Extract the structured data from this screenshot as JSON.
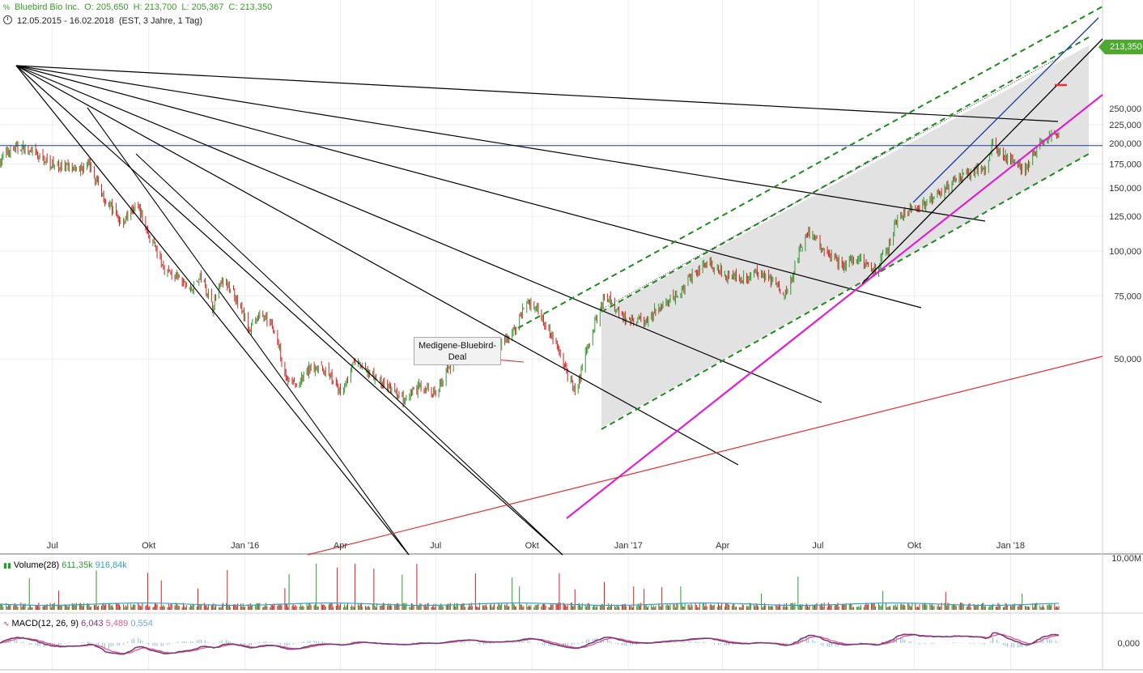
{
  "header": {
    "instrument": "Bluebird Bio Inc.",
    "open": "O: 205,650",
    "high": "H: 213,700",
    "low": "L: 205,367",
    "close": "C: 213,350",
    "range": "12.05.2015 - 16.02.2018",
    "info": "(EST, 3 Jahre, 1 Tag)"
  },
  "price_tag": "213,350",
  "annotation": {
    "line1": "Medigene-Bluebird-",
    "line2": "Deal"
  },
  "volume_header": {
    "label": "Volume(28)",
    "v1": "611,35k",
    "v2": "916,84k"
  },
  "macd_header": {
    "label": "MACD(12, 26, 9)",
    "v1": "6,043",
    "v2": "5,489",
    "v3": "0,554"
  },
  "volume_axis": [
    "10,00M"
  ],
  "macd_axis": [
    "0,000"
  ],
  "colors": {
    "up": "#2e9a2e",
    "down": "#d32020",
    "trendline": "#000000",
    "channel": "#1e8a1e",
    "support": "#e020d0",
    "longtrend": "#e03030",
    "resistance": "#1a3aa0",
    "macd": "#7a3a7a",
    "signal": "#e05a8a",
    "hist": "#6fa8dc"
  },
  "chart_data": {
    "type": "candlestick",
    "scale": "log",
    "y_ticks": [
      "250,000",
      "225,000",
      "200,000",
      "175,000",
      "150,000",
      "125,000",
      "100,000",
      "75,000",
      "50,000"
    ],
    "x_ticks": [
      "Jul",
      "Okt",
      "Jan '16",
      "Apr",
      "Jul",
      "Okt",
      "Jan '17",
      "Apr",
      "Jul",
      "Okt",
      "Jan '18"
    ],
    "ylim": [
      35,
      250
    ],
    "close_path": [
      [
        "2015-05-12",
        178
      ],
      [
        "2015-05-20",
        190
      ],
      [
        "2015-06-01",
        195
      ],
      [
        "2015-06-15",
        185
      ],
      [
        "2015-07-01",
        175
      ],
      [
        "2015-07-20",
        168
      ],
      [
        "2015-08-05",
        172
      ],
      [
        "2015-08-20",
        140
      ],
      [
        "2015-09-05",
        120
      ],
      [
        "2015-09-20",
        135
      ],
      [
        "2015-10-01",
        110
      ],
      [
        "2015-10-15",
        90
      ],
      [
        "2015-11-01",
        82
      ],
      [
        "2015-11-10",
        78
      ],
      [
        "2015-11-20",
        85
      ],
      [
        "2015-12-01",
        70
      ],
      [
        "2015-12-10",
        82
      ],
      [
        "2015-12-20",
        78
      ],
      [
        "2016-01-05",
        60
      ],
      [
        "2016-01-15",
        66
      ],
      [
        "2016-01-25",
        64
      ],
      [
        "2016-02-10",
        44
      ],
      [
        "2016-02-20",
        42
      ],
      [
        "2016-03-05",
        48
      ],
      [
        "2016-03-20",
        46
      ],
      [
        "2016-04-01",
        40
      ],
      [
        "2016-04-15",
        49
      ],
      [
        "2016-05-01",
        45
      ],
      [
        "2016-05-15",
        42
      ],
      [
        "2016-06-01",
        38
      ],
      [
        "2016-06-15",
        42
      ],
      [
        "2016-07-01",
        40
      ],
      [
        "2016-07-15",
        48
      ],
      [
        "2016-08-01",
        55
      ],
      [
        "2016-08-15",
        51
      ],
      [
        "2016-09-01",
        55
      ],
      [
        "2016-09-15",
        60
      ],
      [
        "2016-09-25",
        72
      ],
      [
        "2016-10-05",
        70
      ],
      [
        "2016-10-15",
        62
      ],
      [
        "2016-10-25",
        54
      ],
      [
        "2016-11-05",
        44
      ],
      [
        "2016-11-12",
        40
      ],
      [
        "2016-11-20",
        50
      ],
      [
        "2016-12-01",
        64
      ],
      [
        "2016-12-10",
        76
      ],
      [
        "2016-12-20",
        68
      ],
      [
        "2017-01-05",
        63
      ],
      [
        "2017-01-20",
        65
      ],
      [
        "2017-02-05",
        72
      ],
      [
        "2017-02-20",
        76
      ],
      [
        "2017-03-05",
        88
      ],
      [
        "2017-03-20",
        92
      ],
      [
        "2017-04-05",
        86
      ],
      [
        "2017-04-20",
        84
      ],
      [
        "2017-05-05",
        88
      ],
      [
        "2017-05-20",
        82
      ],
      [
        "2017-06-01",
        75
      ],
      [
        "2017-06-10",
        92
      ],
      [
        "2017-06-20",
        113
      ],
      [
        "2017-06-30",
        107
      ],
      [
        "2017-07-10",
        98
      ],
      [
        "2017-07-25",
        92
      ],
      [
        "2017-08-10",
        96
      ],
      [
        "2017-08-25",
        88
      ],
      [
        "2017-09-05",
        100
      ],
      [
        "2017-09-15",
        125
      ],
      [
        "2017-09-30",
        130
      ],
      [
        "2017-10-15",
        137
      ],
      [
        "2017-11-01",
        152
      ],
      [
        "2017-11-15",
        160
      ],
      [
        "2017-12-01",
        170
      ],
      [
        "2017-12-10",
        168
      ],
      [
        "2017-12-15",
        210
      ],
      [
        "2017-12-20",
        188
      ],
      [
        "2018-01-01",
        178
      ],
      [
        "2018-01-15",
        168
      ],
      [
        "2018-01-25",
        192
      ],
      [
        "2018-02-05",
        205
      ],
      [
        "2018-02-16",
        213.35
      ]
    ],
    "ohlc_last": {
      "open": 205.65,
      "high": 213.7,
      "low": 205.367,
      "close": 213.35
    },
    "horizontal_line": 197,
    "series": [
      {
        "values": "MACD(12, 26, 9)"
      }
    ]
  }
}
